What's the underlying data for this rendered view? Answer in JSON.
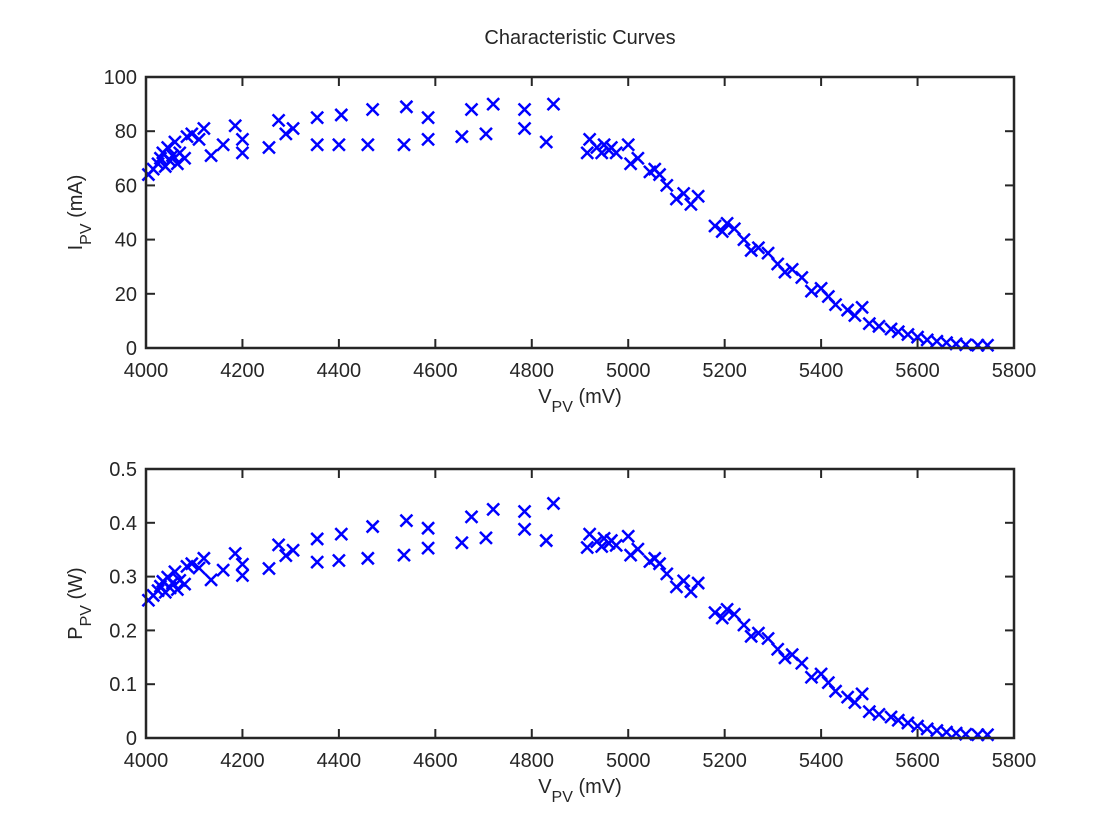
{
  "chart_data": [
    {
      "type": "scatter",
      "title": "Characteristic Curves",
      "marker": "x",
      "color": "#0000ff",
      "xlabel": [
        "V",
        "PV",
        " (mV)"
      ],
      "ylabel": [
        "I",
        "PV",
        " (mA)"
      ],
      "xlim": [
        4000,
        5800
      ],
      "xticks": [
        4000,
        4200,
        4400,
        4600,
        4800,
        5000,
        5200,
        5400,
        5600,
        5800
      ],
      "ylim": [
        0,
        100
      ],
      "yticks": [
        0,
        20,
        40,
        60,
        80,
        100
      ],
      "x": [
        4005,
        4015,
        4025,
        4030,
        4035,
        4040,
        4045,
        4050,
        4055,
        4060,
        4065,
        4070,
        4080,
        4085,
        4095,
        4110,
        4120,
        4135,
        4160,
        4185,
        4200,
        4200,
        4255,
        4275,
        4290,
        4305,
        4355,
        4355,
        4400,
        4405,
        4460,
        4470,
        4535,
        4540,
        4585,
        4585,
        4655,
        4675,
        4705,
        4720,
        4785,
        4785,
        4830,
        4845,
        4915,
        4920,
        4935,
        4945,
        4950,
        4960,
        4965,
        4975,
        5000,
        5005,
        5020,
        5045,
        5055,
        5065,
        5080,
        5100,
        5115,
        5130,
        5145,
        5180,
        5195,
        5205,
        5220,
        5240,
        5255,
        5270,
        5290,
        5310,
        5325,
        5340,
        5360,
        5380,
        5400,
        5415,
        5430,
        5455,
        5470,
        5485,
        5500,
        5520,
        5545,
        5560,
        5580,
        5600,
        5620,
        5640,
        5660,
        5680,
        5700,
        5725,
        5745
      ],
      "values": [
        64,
        66,
        68,
        70,
        72,
        67,
        74,
        69,
        71,
        76,
        68,
        72,
        70,
        78,
        79,
        77,
        81,
        71,
        75,
        82,
        72,
        77,
        74,
        84,
        79,
        81,
        75,
        85,
        75,
        86,
        75,
        88,
        75,
        89,
        77,
        85,
        78,
        88,
        79,
        90,
        81,
        88,
        76,
        90,
        72,
        77,
        74,
        72,
        75,
        73,
        74,
        72,
        75,
        68,
        70,
        65,
        66,
        64,
        60,
        55,
        57,
        53,
        56,
        45,
        43,
        46,
        44,
        40,
        36,
        37,
        35,
        31,
        28,
        29,
        26,
        21,
        22,
        19,
        16,
        14,
        12,
        15,
        9,
        8,
        7,
        6,
        5,
        4,
        3,
        2.5,
        2,
        1.5,
        1.2,
        1,
        1
      ]
    },
    {
      "type": "scatter",
      "marker": "x",
      "color": "#0000ff",
      "xlabel": [
        "V",
        "PV",
        " (mV)"
      ],
      "ylabel": [
        "P",
        "PV",
        " (W)"
      ],
      "xlim": [
        4000,
        5800
      ],
      "xticks": [
        4000,
        4200,
        4400,
        4600,
        4800,
        5000,
        5200,
        5400,
        5600,
        5800
      ],
      "ylim": [
        0,
        0.5
      ],
      "yticks": [
        0,
        0.1,
        0.2,
        0.3,
        0.4,
        0.5
      ],
      "x": [
        4005,
        4015,
        4025,
        4030,
        4035,
        4040,
        4045,
        4050,
        4055,
        4060,
        4065,
        4070,
        4080,
        4085,
        4095,
        4110,
        4120,
        4135,
        4160,
        4185,
        4200,
        4200,
        4255,
        4275,
        4290,
        4305,
        4355,
        4355,
        4400,
        4405,
        4460,
        4470,
        4535,
        4540,
        4585,
        4585,
        4655,
        4675,
        4705,
        4720,
        4785,
        4785,
        4830,
        4845,
        4915,
        4920,
        4935,
        4945,
        4950,
        4960,
        4965,
        4975,
        5000,
        5005,
        5020,
        5045,
        5055,
        5065,
        5080,
        5100,
        5115,
        5130,
        5145,
        5180,
        5195,
        5205,
        5220,
        5240,
        5255,
        5270,
        5290,
        5310,
        5325,
        5340,
        5360,
        5380,
        5400,
        5415,
        5430,
        5455,
        5470,
        5485,
        5500,
        5520,
        5545,
        5560,
        5580,
        5600,
        5620,
        5640,
        5660,
        5680,
        5700,
        5725,
        5745
      ],
      "values": [
        0.256,
        0.265,
        0.274,
        0.282,
        0.291,
        0.271,
        0.299,
        0.279,
        0.288,
        0.309,
        0.276,
        0.293,
        0.286,
        0.319,
        0.324,
        0.316,
        0.334,
        0.294,
        0.312,
        0.343,
        0.302,
        0.323,
        0.315,
        0.359,
        0.339,
        0.349,
        0.327,
        0.37,
        0.33,
        0.379,
        0.334,
        0.393,
        0.34,
        0.404,
        0.353,
        0.39,
        0.363,
        0.411,
        0.372,
        0.425,
        0.388,
        0.421,
        0.367,
        0.436,
        0.354,
        0.379,
        0.365,
        0.356,
        0.371,
        0.362,
        0.367,
        0.358,
        0.375,
        0.34,
        0.351,
        0.328,
        0.334,
        0.324,
        0.305,
        0.281,
        0.292,
        0.272,
        0.288,
        0.233,
        0.223,
        0.239,
        0.23,
        0.21,
        0.189,
        0.195,
        0.185,
        0.165,
        0.149,
        0.155,
        0.139,
        0.113,
        0.119,
        0.103,
        0.087,
        0.076,
        0.066,
        0.082,
        0.049,
        0.044,
        0.039,
        0.033,
        0.028,
        0.022,
        0.017,
        0.014,
        0.011,
        0.009,
        0.007,
        0.006,
        0.006
      ]
    }
  ]
}
